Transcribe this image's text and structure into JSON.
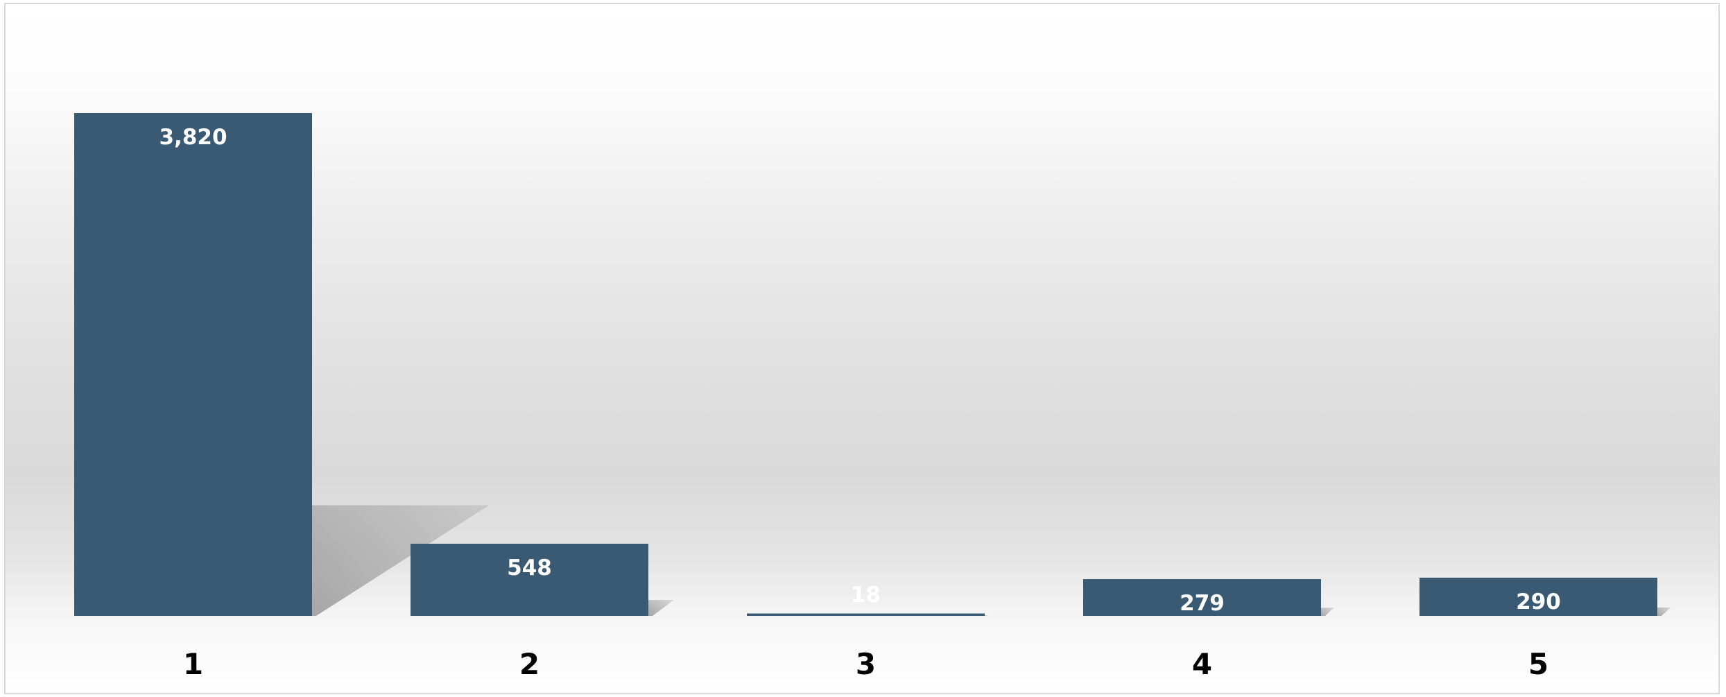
{
  "chart_data": {
    "type": "bar",
    "categories": [
      "1",
      "2",
      "3",
      "4",
      "5"
    ],
    "values": [
      3820,
      548,
      18,
      279,
      290
    ],
    "data_labels": [
      "3,820",
      "548",
      "18",
      "279",
      "290"
    ],
    "title": "",
    "xlabel": "",
    "ylabel": "",
    "ylim": [
      0,
      3820
    ],
    "grid": false,
    "legend": "none",
    "colors": {
      "bar": "#3a5a73",
      "bar_label": "#ffffff",
      "tick_label": "#000000",
      "shadow": "#8c8c8c",
      "border": "#d9d9d9"
    }
  }
}
